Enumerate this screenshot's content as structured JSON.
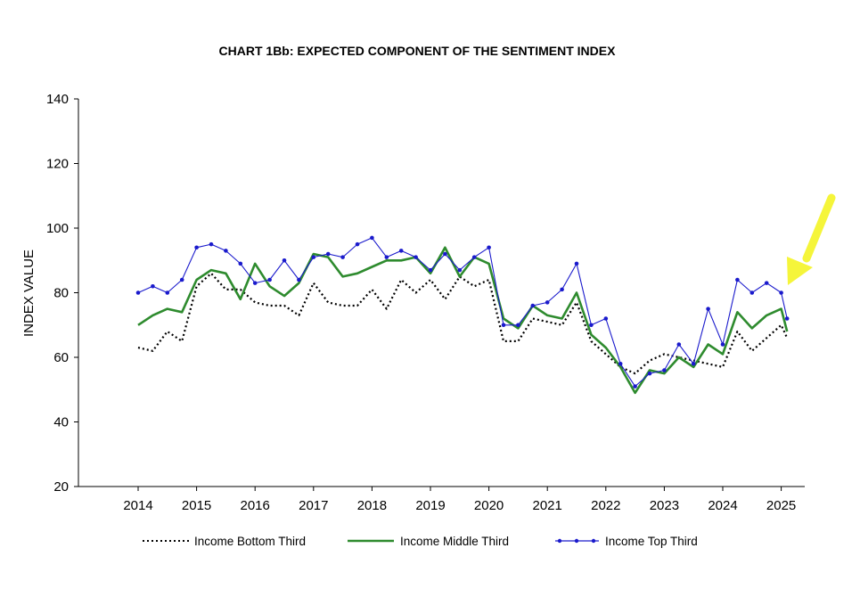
{
  "chart_data": {
    "type": "line",
    "title": "CHART 1Bb: EXPECTED COMPONENT OF THE SENTIMENT INDEX",
    "xlabel": "",
    "ylabel": "INDEX VALUE",
    "ylim": [
      20,
      140
    ],
    "xlim": [
      2014,
      2025.3
    ],
    "yticks": [
      "20",
      "40",
      "60",
      "80",
      "100",
      "120",
      "140"
    ],
    "xticks": [
      "2014",
      "2015",
      "2016",
      "2017",
      "2018",
      "2019",
      "2020",
      "2021",
      "2022",
      "2023",
      "2024",
      "2025"
    ],
    "legend_position": "bottom",
    "grid": false,
    "annotation": "yellow-arrow pointing at latest values",
    "series": [
      {
        "name": "Income Bottom Third",
        "style": "dotted",
        "color": "#000000",
        "x": [
          2014.0,
          2014.25,
          2014.5,
          2014.75,
          2015.0,
          2015.25,
          2015.5,
          2015.75,
          2016.0,
          2016.25,
          2016.5,
          2016.75,
          2017.0,
          2017.25,
          2017.5,
          2017.75,
          2018.0,
          2018.25,
          2018.5,
          2018.75,
          2019.0,
          2019.25,
          2019.5,
          2019.75,
          2020.0,
          2020.25,
          2020.5,
          2020.75,
          2021.0,
          2021.25,
          2021.5,
          2021.75,
          2022.0,
          2022.25,
          2022.5,
          2022.75,
          2023.0,
          2023.25,
          2023.5,
          2023.75,
          2024.0,
          2024.25,
          2024.5,
          2024.75,
          2025.0,
          2025.1
        ],
        "values": [
          63,
          62,
          68,
          65,
          82,
          86,
          81,
          81,
          77,
          76,
          76,
          73,
          83,
          77,
          76,
          76,
          81,
          75,
          84,
          80,
          84,
          78,
          85,
          82,
          84,
          65,
          65,
          72,
          71,
          70,
          77,
          65,
          61,
          57,
          55,
          59,
          61,
          60,
          59,
          58,
          57,
          68,
          62,
          66,
          70,
          66
        ]
      },
      {
        "name": "Income Middle Third",
        "style": "solid",
        "color": "#2e8b2e",
        "x": [
          2014.0,
          2014.25,
          2014.5,
          2014.75,
          2015.0,
          2015.25,
          2015.5,
          2015.75,
          2016.0,
          2016.25,
          2016.5,
          2016.75,
          2017.0,
          2017.25,
          2017.5,
          2017.75,
          2018.0,
          2018.25,
          2018.5,
          2018.75,
          2019.0,
          2019.25,
          2019.5,
          2019.75,
          2020.0,
          2020.25,
          2020.5,
          2020.75,
          2021.0,
          2021.25,
          2021.5,
          2021.75,
          2022.0,
          2022.25,
          2022.5,
          2022.75,
          2023.0,
          2023.25,
          2023.5,
          2023.75,
          2024.0,
          2024.25,
          2024.5,
          2024.75,
          2025.0,
          2025.1
        ],
        "values": [
          70,
          73,
          75,
          74,
          84,
          87,
          86,
          78,
          89,
          82,
          79,
          83,
          92,
          91,
          85,
          86,
          88,
          90,
          90,
          91,
          86,
          94,
          85,
          91,
          89,
          72,
          69,
          76,
          73,
          72,
          80,
          67,
          63,
          57,
          49,
          56,
          55,
          60,
          57,
          64,
          61,
          74,
          69,
          73,
          75,
          68
        ]
      },
      {
        "name": "Income Top Third",
        "style": "solid-dots",
        "color": "#1a1acc",
        "x": [
          2014.0,
          2014.25,
          2014.5,
          2014.75,
          2015.0,
          2015.25,
          2015.5,
          2015.75,
          2016.0,
          2016.25,
          2016.5,
          2016.75,
          2017.0,
          2017.25,
          2017.5,
          2017.75,
          2018.0,
          2018.25,
          2018.5,
          2018.75,
          2019.0,
          2019.25,
          2019.5,
          2019.75,
          2020.0,
          2020.25,
          2020.5,
          2020.75,
          2021.0,
          2021.25,
          2021.5,
          2021.75,
          2022.0,
          2022.25,
          2022.5,
          2022.75,
          2023.0,
          2023.25,
          2023.5,
          2023.75,
          2024.0,
          2024.25,
          2024.5,
          2024.75,
          2025.0,
          2025.1
        ],
        "values": [
          80,
          82,
          80,
          84,
          94,
          95,
          93,
          89,
          83,
          84,
          90,
          84,
          91,
          92,
          91,
          95,
          97,
          91,
          93,
          91,
          87,
          92,
          87,
          91,
          94,
          70,
          70,
          76,
          77,
          81,
          89,
          70,
          72,
          58,
          51,
          55,
          56,
          64,
          58,
          75,
          64,
          84,
          80,
          83,
          80,
          72
        ]
      }
    ]
  }
}
